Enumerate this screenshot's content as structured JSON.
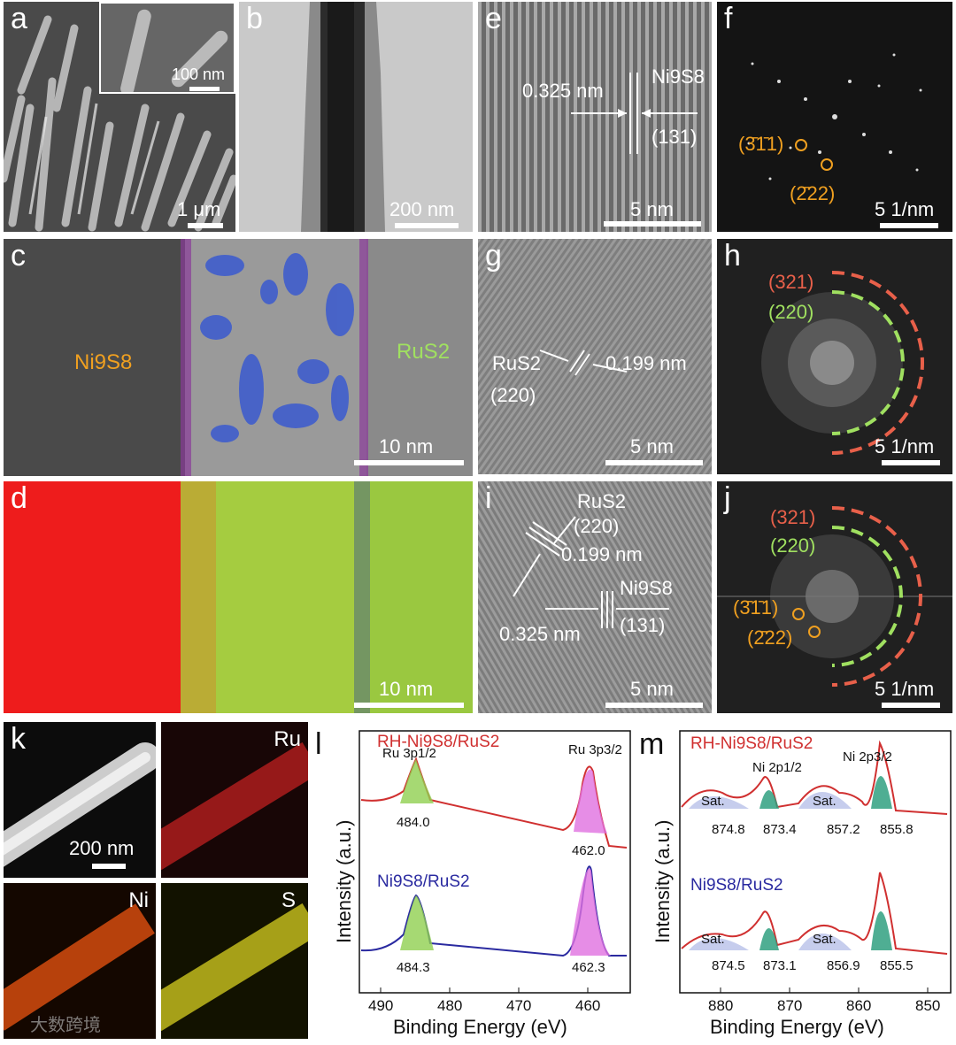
{
  "panels": {
    "a": {
      "letter": "a",
      "scale": "1 μm",
      "inset_scale": "100 nm"
    },
    "b": {
      "letter": "b",
      "scale": "200 nm"
    },
    "c": {
      "letter": "c",
      "scale": "10 nm",
      "left_phase": "Ni9S8",
      "right_phase": "RuS2"
    },
    "d": {
      "letter": "d",
      "scale": "10 nm"
    },
    "e": {
      "letter": "e",
      "scale": "5 nm",
      "d_spacing": "0.325 nm",
      "phase": "Ni9S8",
      "plane": "(131)"
    },
    "f": {
      "letter": "f",
      "scale": "5 1/nm",
      "spot1": "(3̄1̄1)",
      "spot2": "(2̄22)"
    },
    "g": {
      "letter": "g",
      "scale": "5 nm",
      "phase": "RuS2",
      "plane": "(220)",
      "d_spacing": "0.199 nm"
    },
    "h": {
      "letter": "h",
      "scale": "5 1/nm",
      "ring1": "(321)",
      "ring2": "(220)"
    },
    "i": {
      "letter": "i",
      "scale": "5 nm",
      "phase1": "RuS2",
      "plane1": "(220)",
      "d1": "0.199 nm",
      "phase2": "Ni9S8",
      "plane2": "(131)",
      "d2": "0.325 nm"
    },
    "j": {
      "letter": "j",
      "scale": "5 1/nm",
      "ring1": "(321)",
      "ring2": "(220)",
      "spot1": "(3̄1̄1)",
      "spot2": "(2̄22)"
    },
    "k": {
      "letter": "k",
      "scale": "200 nm",
      "map_ru": "Ru",
      "map_ni": "Ni",
      "map_s": "S",
      "watermark": "大数跨境"
    }
  },
  "xps_l": {
    "letter": "l",
    "xlabel": "Binding Energy (eV)",
    "ylabel": "Intensity (a.u.)",
    "xticks": [
      "490",
      "480",
      "470",
      "460"
    ],
    "top_label": "RH-Ni9S8/RuS2",
    "bottom_label": "Ni9S8/RuS2",
    "peak1_name": "Ru 3p1/2",
    "peak2_name": "Ru 3p3/2",
    "top_peaks": [
      "484.0",
      "462.0"
    ],
    "bottom_peaks": [
      "484.3",
      "462.3"
    ]
  },
  "xps_m": {
    "letter": "m",
    "xlabel": "Binding Energy (eV)",
    "ylabel": "Intensity (a.u.)",
    "xticks": [
      "880",
      "870",
      "860",
      "850"
    ],
    "top_label": "RH-Ni9S8/RuS2",
    "bottom_label": "Ni9S8/RuS2",
    "peak1_name": "Ni 2p1/2",
    "peak2_name": "Ni 2p3/2",
    "sat": "Sat.",
    "top_peaks": [
      "874.8",
      "873.4",
      "857.2",
      "855.8"
    ],
    "bottom_peaks": [
      "874.5",
      "873.1",
      "856.9",
      "855.5"
    ]
  },
  "colors": {
    "orange": "#f0a020",
    "green": "#a0e060",
    "red": "#e8604a",
    "blue_label": "#2a2aa0",
    "red_label": "#d03030"
  }
}
